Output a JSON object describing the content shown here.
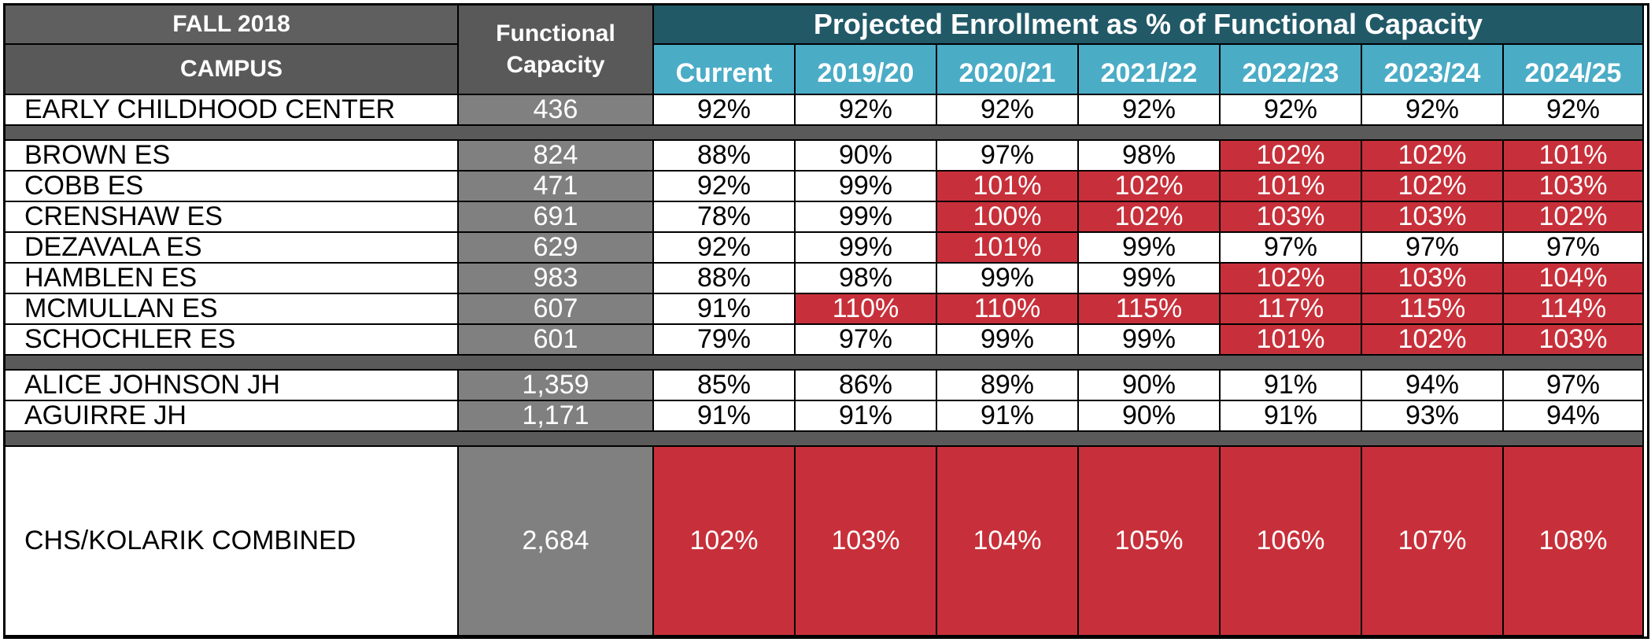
{
  "header": {
    "term": "FALL 2018",
    "campus_label": "CAMPUS",
    "capacity_label_line1": "Functional",
    "capacity_label_line2": "Capacity",
    "group_title": "Projected Enrollment as % of Functional Capacity",
    "columns": [
      "Current",
      "2019/20",
      "2020/21",
      "2021/22",
      "2022/23",
      "2023/24",
      "2024/25"
    ]
  },
  "colors": {
    "over_capacity": "#c7303a",
    "header_teal": "#215967",
    "header_blue": "#4bacc6",
    "capacity_gray": "#808080"
  },
  "rows": [
    {
      "campus": "EARLY CHILDHOOD CENTER",
      "capacity": "436",
      "values": [
        "92%",
        "92%",
        "92%",
        "92%",
        "92%",
        "92%",
        "92%"
      ],
      "over": [
        false,
        false,
        false,
        false,
        false,
        false,
        false
      ]
    },
    {
      "separator": true
    },
    {
      "campus": "BROWN ES",
      "capacity": "824",
      "values": [
        "88%",
        "90%",
        "97%",
        "98%",
        "102%",
        "102%",
        "101%"
      ],
      "over": [
        false,
        false,
        false,
        false,
        true,
        true,
        true
      ]
    },
    {
      "campus": "COBB ES",
      "capacity": "471",
      "values": [
        "92%",
        "99%",
        "101%",
        "102%",
        "101%",
        "102%",
        "103%"
      ],
      "over": [
        false,
        false,
        true,
        true,
        true,
        true,
        true
      ]
    },
    {
      "campus": "CRENSHAW ES",
      "capacity": "691",
      "values": [
        "78%",
        "99%",
        "100%",
        "102%",
        "103%",
        "103%",
        "102%"
      ],
      "over": [
        false,
        false,
        true,
        true,
        true,
        true,
        true
      ]
    },
    {
      "campus": "DEZAVALA ES",
      "capacity": "629",
      "values": [
        "92%",
        "99%",
        "101%",
        "99%",
        "97%",
        "97%",
        "97%"
      ],
      "over": [
        false,
        false,
        true,
        false,
        false,
        false,
        false
      ]
    },
    {
      "campus": "HAMBLEN ES",
      "capacity": "983",
      "values": [
        "88%",
        "98%",
        "99%",
        "99%",
        "102%",
        "103%",
        "104%"
      ],
      "over": [
        false,
        false,
        false,
        false,
        true,
        true,
        true
      ]
    },
    {
      "campus": "MCMULLAN ES",
      "capacity": "607",
      "values": [
        "91%",
        "110%",
        "110%",
        "115%",
        "117%",
        "115%",
        "114%"
      ],
      "over": [
        false,
        true,
        true,
        true,
        true,
        true,
        true
      ]
    },
    {
      "campus": "SCHOCHLER ES",
      "capacity": "601",
      "values": [
        "79%",
        "97%",
        "99%",
        "99%",
        "101%",
        "102%",
        "103%"
      ],
      "over": [
        false,
        false,
        false,
        false,
        true,
        true,
        true
      ]
    },
    {
      "separator": true
    },
    {
      "campus": "ALICE JOHNSON JH",
      "capacity": "1,359",
      "values": [
        "85%",
        "86%",
        "89%",
        "90%",
        "91%",
        "94%",
        "97%"
      ],
      "over": [
        false,
        false,
        false,
        false,
        false,
        false,
        false
      ]
    },
    {
      "campus": "AGUIRRE JH",
      "capacity": "1,171",
      "values": [
        "91%",
        "91%",
        "91%",
        "90%",
        "91%",
        "93%",
        "94%"
      ],
      "over": [
        false,
        false,
        false,
        false,
        false,
        false,
        false
      ]
    },
    {
      "separator": true
    },
    {
      "campus": "CHS/KOLARIK COMBINED",
      "capacity": "2,684",
      "values": [
        "102%",
        "103%",
        "104%",
        "105%",
        "106%",
        "107%",
        "108%"
      ],
      "over": [
        true,
        true,
        true,
        true,
        true,
        true,
        true
      ]
    }
  ]
}
